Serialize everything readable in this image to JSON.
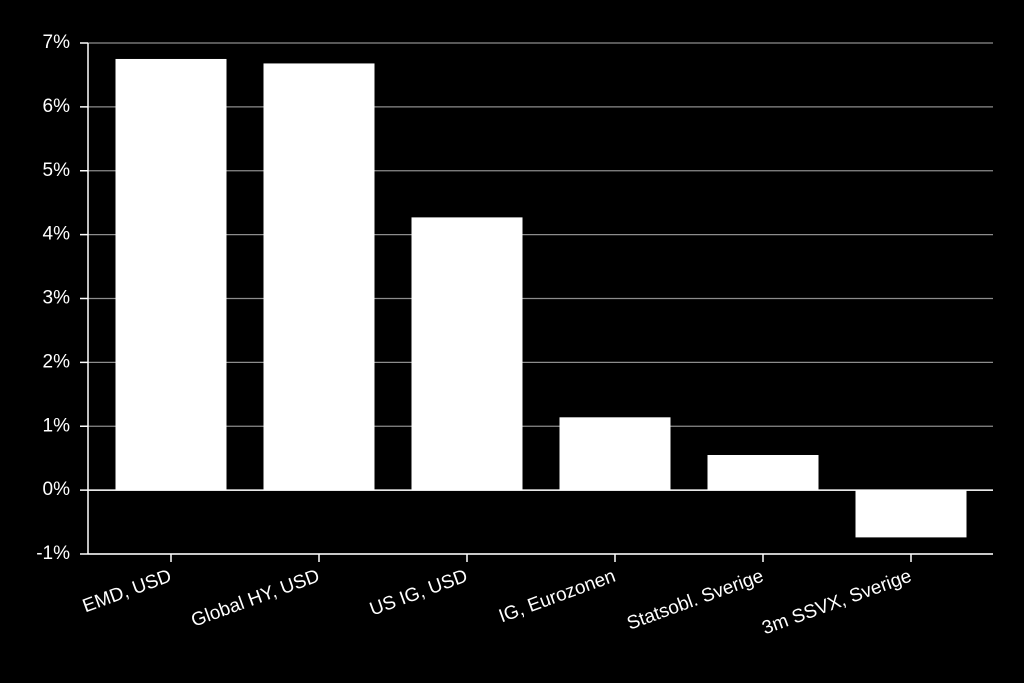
{
  "chart_data": {
    "type": "bar",
    "categories": [
      "EMD, USD",
      "Global HY, USD",
      "US IG, USD",
      "IG, Eurozonen",
      "Statsobl. Sverige",
      "3m SSVX, Sverige"
    ],
    "values": [
      6.75,
      6.68,
      4.27,
      1.14,
      0.55,
      -0.74
    ],
    "color": "#ffffff",
    "ylim": [
      -1,
      7
    ],
    "yticks": [
      {
        "value": -1,
        "label": "-1%"
      },
      {
        "value": 0,
        "label": "0%"
      },
      {
        "value": 1,
        "label": "1%"
      },
      {
        "value": 2,
        "label": "2%"
      },
      {
        "value": 3,
        "label": "3%"
      },
      {
        "value": 4,
        "label": "4%"
      },
      {
        "value": 5,
        "label": "5%"
      },
      {
        "value": 6,
        "label": "6%"
      },
      {
        "value": 7,
        "label": "7%"
      }
    ],
    "grid": true
  }
}
